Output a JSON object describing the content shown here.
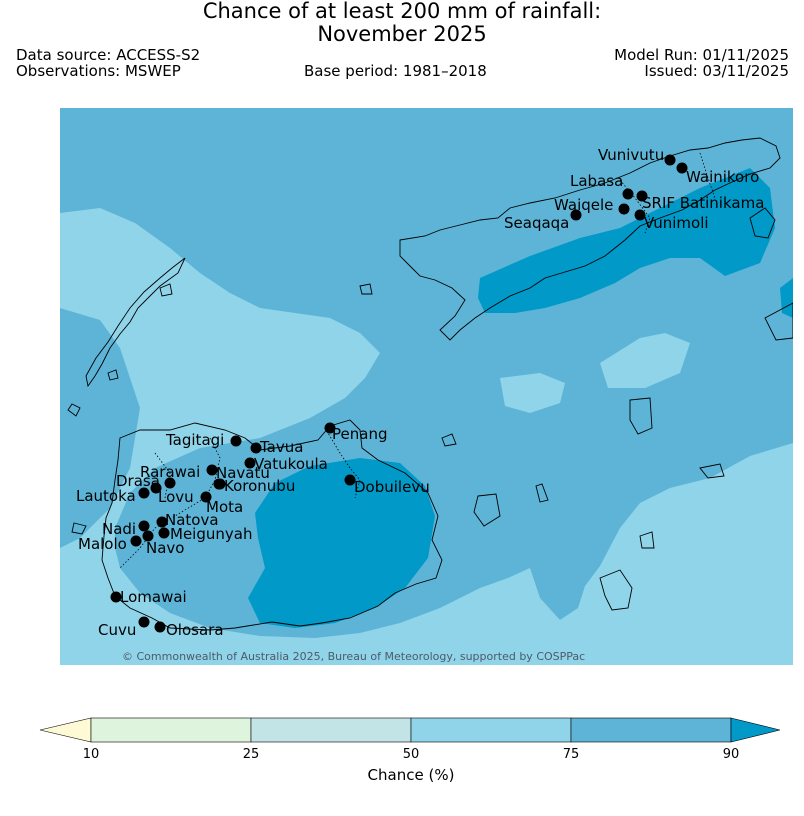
{
  "title": {
    "line1": "Chance of at least 200 mm of rainfall:",
    "line2": "November 2025"
  },
  "meta": {
    "data_source": "Data source: ACCESS-S2",
    "observations": "Observations: MSWEP",
    "base_period": "Base period: 1981–2018",
    "model_run": "Model Run: 01/11/2025",
    "issued": "Issued: 03/11/2025"
  },
  "map": {
    "copyright": "© Commonwealth of Australia 2025, Bureau of Meteorology, supported by COSPPac",
    "colors": {
      "band_50_75": "#90d4ea",
      "band_75_90": "#5db4d6",
      "band_90_plus": "#0099c8",
      "coastline": "#000000",
      "station": "#000000"
    },
    "stations": [
      {
        "name": "Vunivutu"
      },
      {
        "name": "Wainikoro"
      },
      {
        "name": "Labasa"
      },
      {
        "name": "SRIF Batinikama"
      },
      {
        "name": "Waiqele"
      },
      {
        "name": "Seaqaqa"
      },
      {
        "name": "Vunimoli"
      },
      {
        "name": "Penang"
      },
      {
        "name": "Tagitagi"
      },
      {
        "name": "Tavua"
      },
      {
        "name": "Vatukoula"
      },
      {
        "name": "Rarawai"
      },
      {
        "name": "Navatu"
      },
      {
        "name": "Drasa"
      },
      {
        "name": "Koronubu"
      },
      {
        "name": "Lautoka"
      },
      {
        "name": "Lovu"
      },
      {
        "name": "Mota"
      },
      {
        "name": "Dobuilevu"
      },
      {
        "name": "Natova"
      },
      {
        "name": "Nadi"
      },
      {
        "name": "Meigunyah"
      },
      {
        "name": "Malolo"
      },
      {
        "name": "Navo"
      },
      {
        "name": "Lomawai"
      },
      {
        "name": "Cuvu"
      },
      {
        "name": "Olosara"
      }
    ]
  },
  "colorbar": {
    "title": "Chance (%)",
    "ticks": [
      "10",
      "25",
      "50",
      "75",
      "90"
    ],
    "colors": [
      "#fffad6",
      "#dff4dd",
      "#c2e4e6",
      "#90d4ea",
      "#5db4d6",
      "#0099c8"
    ]
  }
}
